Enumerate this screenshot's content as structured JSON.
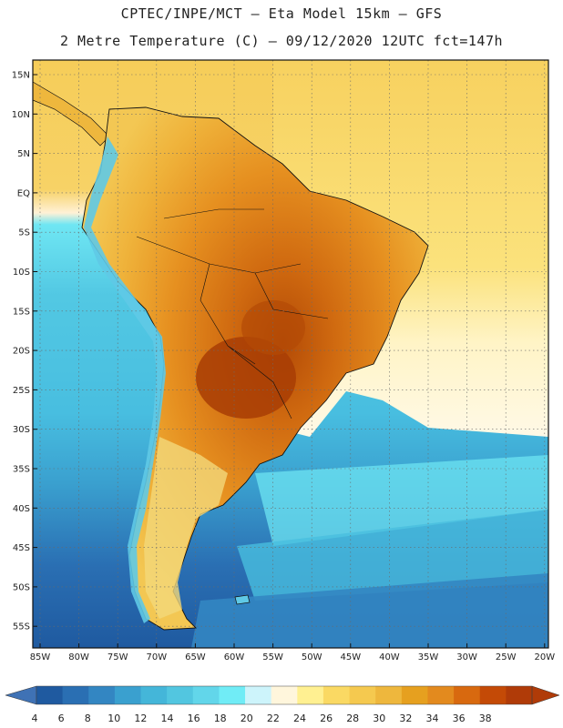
{
  "header": {
    "line1": "CPTEC/INPE/MCT –  Eta Model 15km – GFS",
    "line2": "2 Metre Temperature (C) – 09/12/2020 12UTC fct=147h"
  },
  "map": {
    "lat_labels": [
      "15N",
      "10N",
      "5N",
      "EQ",
      "5S",
      "10S",
      "15S",
      "20S",
      "25S",
      "30S",
      "35S",
      "40S",
      "45S",
      "50S",
      "55S"
    ],
    "lon_labels": [
      "85W",
      "80W",
      "75W",
      "70W",
      "65W",
      "60W",
      "55W",
      "50W",
      "45W",
      "40W",
      "35W",
      "30W",
      "25W",
      "20W"
    ]
  },
  "colorbar": {
    "labels": [
      "4",
      "6",
      "8",
      "10",
      "12",
      "14",
      "16",
      "18",
      "20",
      "22",
      "24",
      "26",
      "28",
      "30",
      "32",
      "34",
      "36",
      "38"
    ],
    "colors": [
      "#1f5aa0",
      "#2a6fb3",
      "#3386c2",
      "#3aa0cf",
      "#44b6d9",
      "#52c6e0",
      "#62d6ea",
      "#70ecf6",
      "#cdf4fb",
      "#fff6dc",
      "#fff091",
      "#fad963",
      "#f5c94f",
      "#eeb73d",
      "#e6a01f",
      "#e38a1e",
      "#d8690f",
      "#c44a06",
      "#b03b08"
    ],
    "low_color": "#3f72b5",
    "high_color": "#b03b08"
  }
}
